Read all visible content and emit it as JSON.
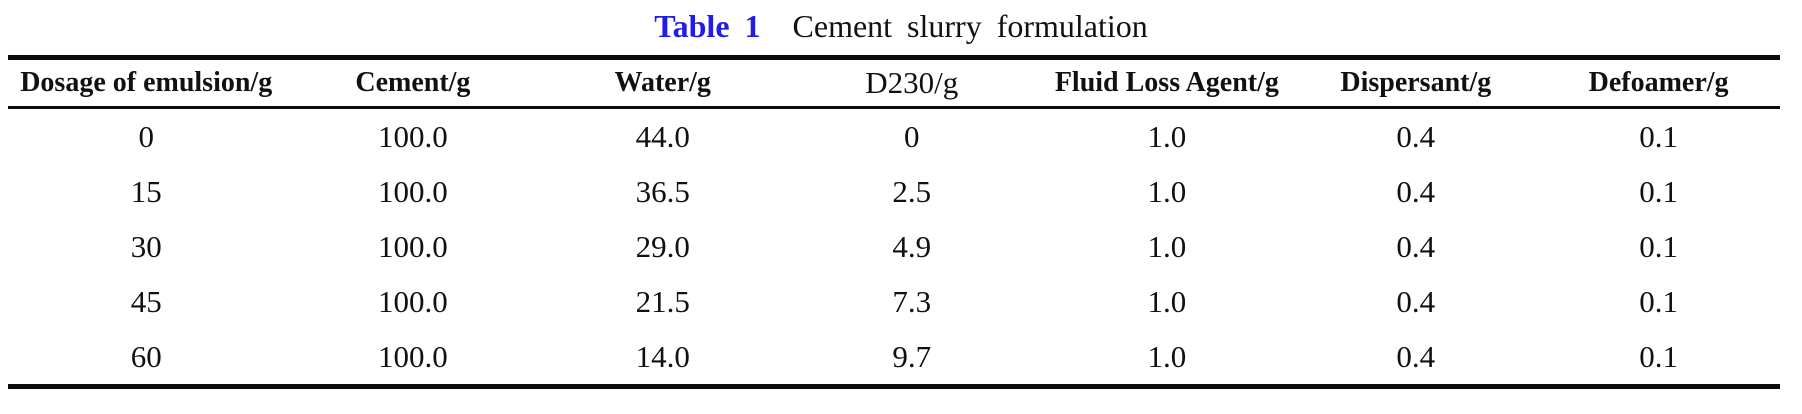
{
  "caption": {
    "label": "Table 1",
    "text": "Cement slurry formulation"
  },
  "colors": {
    "table_label_accent": "#221ce8",
    "text": "#111111",
    "rule": "#0b0b0b"
  },
  "chart_data": {
    "type": "table",
    "title": "Table 1 Cement slurry formulation",
    "columns": [
      {
        "label": "Dosage of emulsion/g",
        "bold": true
      },
      {
        "label": "Cement/g",
        "bold": true
      },
      {
        "label": "Water/g",
        "bold": true
      },
      {
        "label": "D230/g",
        "bold": false
      },
      {
        "label": "Fluid Loss Agent/g",
        "bold": true
      },
      {
        "label": "Dispersant/g",
        "bold": true
      },
      {
        "label": "Defoamer/g",
        "bold": true
      }
    ],
    "rows": [
      [
        "0",
        "100.0",
        "44.0",
        "0",
        "1.0",
        "0.4",
        "0.1"
      ],
      [
        "15",
        "100.0",
        "36.5",
        "2.5",
        "1.0",
        "0.4",
        "0.1"
      ],
      [
        "30",
        "100.0",
        "29.0",
        "4.9",
        "1.0",
        "0.4",
        "0.1"
      ],
      [
        "45",
        "100.0",
        "21.5",
        "7.3",
        "1.0",
        "0.4",
        "0.1"
      ],
      [
        "60",
        "100.0",
        "14.0",
        "9.7",
        "1.0",
        "0.4",
        "0.1"
      ]
    ]
  }
}
